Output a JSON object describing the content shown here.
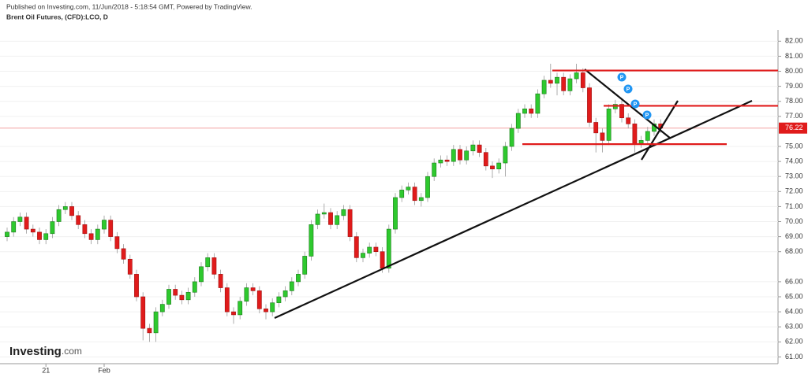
{
  "header": {
    "published": "Published on Investing.com, 11/Jun/2018 - 5:18:54 GMT, Powered by TradingView.",
    "instrument": "Brent Oil Futures, (CFD):LCO, D"
  },
  "logo": {
    "main": "Investing",
    "suffix": ".com"
  },
  "chart_data": {
    "type": "candlestick",
    "categories": [
      null,
      null,
      null,
      null,
      null,
      null,
      "21",
      null,
      null,
      null,
      null,
      null,
      null,
      null,
      null,
      "Feb",
      null,
      null,
      null,
      null,
      null,
      null,
      null,
      null,
      null,
      null,
      null,
      null,
      null,
      null,
      null,
      null,
      null,
      null,
      null,
      null,
      null,
      null,
      null,
      null,
      null,
      null,
      null,
      null,
      null,
      null,
      null,
      null,
      null,
      null,
      null,
      null,
      null,
      null,
      null,
      null,
      null,
      null,
      null,
      null,
      null,
      null,
      null,
      null,
      null,
      null,
      null,
      null,
      null,
      null,
      null,
      null,
      null,
      null,
      null,
      null,
      null,
      null,
      null,
      null,
      null,
      null,
      null,
      null,
      null,
      null,
      null,
      null,
      null,
      null,
      null,
      null,
      null,
      null,
      null,
      null,
      null,
      null,
      null,
      null,
      null,
      null
    ],
    "open": [
      69.0,
      69.3,
      70.0,
      70.3,
      69.5,
      69.3,
      68.8,
      69.2,
      70.0,
      70.8,
      71.0,
      70.4,
      69.8,
      69.2,
      68.8,
      69.5,
      70.1,
      69.0,
      68.2,
      67.5,
      66.5,
      65.0,
      62.9,
      62.6,
      64.0,
      64.5,
      65.5,
      65.1,
      64.8,
      65.3,
      66.0,
      67.0,
      67.6,
      66.5,
      65.6,
      64.0,
      63.8,
      64.7,
      65.6,
      65.4,
      64.2,
      64.0,
      64.6,
      65.0,
      65.4,
      66.0,
      66.5,
      67.7,
      69.8,
      70.5,
      70.6,
      69.8,
      70.4,
      70.8,
      69.0,
      67.6,
      67.9,
      68.3,
      68.0,
      66.9,
      69.5,
      71.6,
      72.1,
      72.3,
      71.4,
      71.6,
      73.0,
      73.9,
      74.1,
      74.0,
      74.8,
      74.1,
      74.7,
      75.1,
      74.6,
      73.7,
      73.5,
      73.9,
      75.0,
      76.2,
      77.2,
      77.5,
      77.2,
      78.5,
      79.4,
      79.2,
      79.6,
      78.7,
      79.5,
      79.9,
      78.9,
      76.6,
      75.9,
      75.4,
      77.5,
      77.8,
      76.9,
      76.5,
      75.2,
      75.4,
      76.0,
      76.5
    ],
    "high": [
      69.6,
      70.3,
      70.6,
      70.6,
      69.8,
      69.6,
      69.5,
      70.3,
      71.1,
      71.3,
      71.3,
      70.7,
      70.1,
      69.5,
      69.8,
      70.4,
      70.4,
      69.3,
      68.5,
      67.8,
      66.8,
      65.3,
      63.2,
      64.3,
      64.8,
      65.8,
      65.8,
      65.4,
      65.6,
      66.3,
      67.3,
      67.9,
      67.9,
      66.8,
      65.9,
      64.3,
      65.0,
      65.9,
      65.9,
      65.7,
      64.5,
      64.9,
      65.3,
      65.7,
      66.3,
      66.8,
      68.0,
      70.1,
      70.8,
      71.2,
      70.9,
      70.7,
      71.1,
      71.1,
      69.3,
      68.2,
      68.6,
      68.6,
      68.3,
      69.8,
      71.9,
      72.4,
      72.6,
      72.6,
      71.9,
      73.3,
      74.2,
      74.4,
      74.4,
      75.1,
      75.1,
      75.0,
      75.4,
      75.4,
      74.9,
      74.0,
      74.2,
      75.3,
      76.5,
      77.5,
      77.8,
      77.8,
      78.8,
      79.7,
      80.5,
      79.9,
      79.9,
      79.8,
      80.5,
      80.2,
      79.2,
      76.9,
      76.2,
      77.8,
      78.1,
      78.1,
      77.2,
      76.8,
      75.7,
      76.3,
      76.8,
      76.8
    ],
    "low": [
      68.7,
      69.0,
      69.7,
      69.2,
      69.0,
      68.5,
      68.5,
      68.9,
      69.7,
      70.5,
      70.1,
      69.5,
      68.9,
      68.5,
      68.5,
      69.2,
      68.7,
      67.9,
      67.2,
      66.2,
      64.7,
      62.1,
      62.0,
      62.0,
      63.7,
      64.2,
      64.8,
      64.5,
      64.5,
      65.0,
      65.7,
      66.7,
      66.2,
      65.3,
      63.7,
      63.2,
      63.5,
      64.4,
      65.1,
      63.9,
      63.5,
      63.7,
      64.3,
      64.7,
      65.1,
      65.7,
      66.2,
      67.4,
      69.5,
      70.2,
      69.5,
      69.5,
      70.1,
      68.7,
      67.3,
      67.3,
      67.6,
      67.7,
      66.6,
      66.6,
      69.2,
      71.3,
      71.8,
      71.1,
      71.0,
      71.3,
      72.7,
      73.6,
      73.7,
      73.7,
      73.8,
      73.8,
      74.4,
      74.3,
      73.4,
      72.9,
      73.2,
      73.0,
      74.7,
      75.9,
      76.9,
      76.9,
      76.9,
      78.2,
      78.9,
      78.4,
      78.4,
      78.4,
      79.2,
      78.6,
      76.3,
      74.6,
      74.6,
      75.1,
      77.2,
      76.6,
      76.2,
      74.6,
      74.9,
      75.1,
      75.7,
      75.9
    ],
    "close": [
      69.3,
      70.0,
      70.3,
      69.5,
      69.3,
      68.8,
      69.2,
      70.0,
      70.8,
      71.0,
      70.4,
      69.8,
      69.2,
      68.8,
      69.5,
      70.1,
      69.0,
      68.2,
      67.5,
      66.5,
      65.0,
      62.9,
      62.6,
      64.0,
      64.5,
      65.5,
      65.1,
      64.8,
      65.3,
      66.0,
      67.0,
      67.6,
      66.5,
      65.6,
      64.0,
      63.8,
      64.7,
      65.6,
      65.4,
      64.2,
      64.0,
      64.6,
      65.0,
      65.4,
      66.0,
      66.5,
      67.7,
      69.8,
      70.5,
      70.6,
      69.8,
      70.4,
      70.8,
      69.0,
      67.6,
      67.9,
      68.3,
      68.0,
      66.9,
      69.5,
      71.6,
      72.1,
      72.3,
      71.4,
      71.6,
      73.0,
      73.9,
      74.1,
      74.0,
      74.8,
      74.1,
      74.7,
      75.1,
      74.6,
      73.7,
      73.5,
      73.9,
      75.0,
      76.2,
      77.2,
      77.5,
      77.2,
      78.5,
      79.4,
      79.2,
      79.6,
      78.7,
      79.5,
      79.9,
      78.9,
      76.6,
      75.9,
      75.4,
      77.5,
      77.8,
      76.9,
      76.5,
      75.2,
      75.4,
      76.0,
      76.5,
      76.22
    ],
    "up_color": "#2ec92e",
    "down_color": "#e01b1b",
    "ylim": [
      60.55,
      82.75
    ],
    "yticks": [
      {
        "value": 82,
        "label": "82.00"
      },
      {
        "value": 81,
        "label": "81.00"
      },
      {
        "value": 80,
        "label": "80.00"
      },
      {
        "value": 79,
        "label": "79.00"
      },
      {
        "value": 78,
        "label": "78.00"
      },
      {
        "value": 77,
        "label": "77.00"
      },
      {
        "value": 75,
        "label": "75.00"
      },
      {
        "value": 74,
        "label": "74.00"
      },
      {
        "value": 73,
        "label": "73.00"
      },
      {
        "value": 72,
        "label": "72.00"
      },
      {
        "value": 71,
        "label": "71.00"
      },
      {
        "value": 70,
        "label": "70.00"
      },
      {
        "value": 69,
        "label": "69.00"
      },
      {
        "value": 68,
        "label": "68.00"
      },
      {
        "value": 66,
        "label": "66.00"
      },
      {
        "value": 65,
        "label": "65.00"
      },
      {
        "value": 64,
        "label": "64.00"
      },
      {
        "value": 63,
        "label": "63.00"
      },
      {
        "value": 62,
        "label": "62.00"
      },
      {
        "value": 61,
        "label": "61.00"
      }
    ],
    "grid": true,
    "last_price": {
      "value": 76.22,
      "label": "76.22"
    },
    "levels": [
      80.05,
      77.7,
      75.15
    ],
    "level_color": "#e01b1b",
    "markers": [
      "P",
      "P",
      "P",
      "P"
    ]
  }
}
